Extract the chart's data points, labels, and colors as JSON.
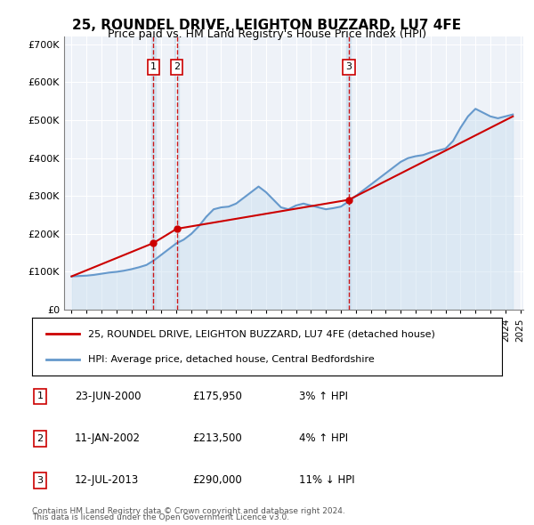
{
  "title": "25, ROUNDEL DRIVE, LEIGHTON BUZZARD, LU7 4FE",
  "subtitle": "Price paid vs. HM Land Registry's House Price Index (HPI)",
  "legend_line1": "25, ROUNDEL DRIVE, LEIGHTON BUZZARD, LU7 4FE (detached house)",
  "legend_line2": "HPI: Average price, detached house, Central Bedfordshire",
  "footnote1": "Contains HM Land Registry data © Crown copyright and database right 2024.",
  "footnote2": "This data is licensed under the Open Government Licence v3.0.",
  "transactions": [
    {
      "num": 1,
      "date": "23-JUN-2000",
      "price": 175950,
      "pct": "3%",
      "dir": "↑",
      "year_x": 2000.47
    },
    {
      "num": 2,
      "date": "11-JAN-2002",
      "price": 213500,
      "pct": "4%",
      "dir": "↑",
      "year_x": 2002.03
    },
    {
      "num": 3,
      "date": "12-JUL-2013",
      "price": 290000,
      "pct": "11%",
      "dir": "↓",
      "year_x": 2013.53
    }
  ],
  "hpi_years": [
    1995,
    1995.5,
    1996,
    1996.5,
    1997,
    1997.5,
    1998,
    1998.5,
    1999,
    1999.5,
    2000,
    2000.5,
    2001,
    2001.5,
    2002,
    2002.5,
    2003,
    2003.5,
    2004,
    2004.5,
    2005,
    2005.5,
    2006,
    2006.5,
    2007,
    2007.5,
    2008,
    2008.5,
    2009,
    2009.5,
    2010,
    2010.5,
    2011,
    2011.5,
    2012,
    2012.5,
    2013,
    2013.5,
    2014,
    2014.5,
    2015,
    2015.5,
    2016,
    2016.5,
    2017,
    2017.5,
    2018,
    2018.5,
    2019,
    2019.5,
    2020,
    2020.5,
    2021,
    2021.5,
    2022,
    2022.5,
    2023,
    2023.5,
    2024,
    2024.5
  ],
  "hpi_values": [
    88000,
    89000,
    90000,
    92000,
    95000,
    98000,
    100000,
    103000,
    107000,
    112000,
    118000,
    130000,
    145000,
    160000,
    175000,
    185000,
    200000,
    220000,
    245000,
    265000,
    270000,
    272000,
    280000,
    295000,
    310000,
    325000,
    310000,
    290000,
    270000,
    265000,
    275000,
    280000,
    275000,
    270000,
    265000,
    268000,
    272000,
    285000,
    300000,
    315000,
    330000,
    345000,
    360000,
    375000,
    390000,
    400000,
    405000,
    408000,
    415000,
    420000,
    425000,
    445000,
    480000,
    510000,
    530000,
    520000,
    510000,
    505000,
    510000,
    515000
  ],
  "sale_years": [
    1995,
    2000.47,
    2002.03,
    2013.53,
    2024.5
  ],
  "sale_values": [
    88000,
    175950,
    213500,
    290000,
    510000
  ],
  "xlim": [
    1994.5,
    2025.2
  ],
  "ylim": [
    0,
    720000
  ],
  "yticks": [
    0,
    100000,
    200000,
    300000,
    400000,
    500000,
    600000,
    700000
  ],
  "xticks": [
    1995,
    1996,
    1997,
    1998,
    1999,
    2000,
    2001,
    2002,
    2003,
    2004,
    2005,
    2006,
    2007,
    2008,
    2009,
    2010,
    2011,
    2012,
    2013,
    2014,
    2015,
    2016,
    2017,
    2018,
    2019,
    2020,
    2021,
    2022,
    2023,
    2024,
    2025
  ],
  "hpi_color": "#6699cc",
  "hpi_fill_color": "#cce0f0",
  "sale_color": "#cc0000",
  "vline_color": "#cc0000",
  "marker_box_color": "#cc0000",
  "background_color": "#f0f4fa",
  "plot_bg": "#eef2f8"
}
